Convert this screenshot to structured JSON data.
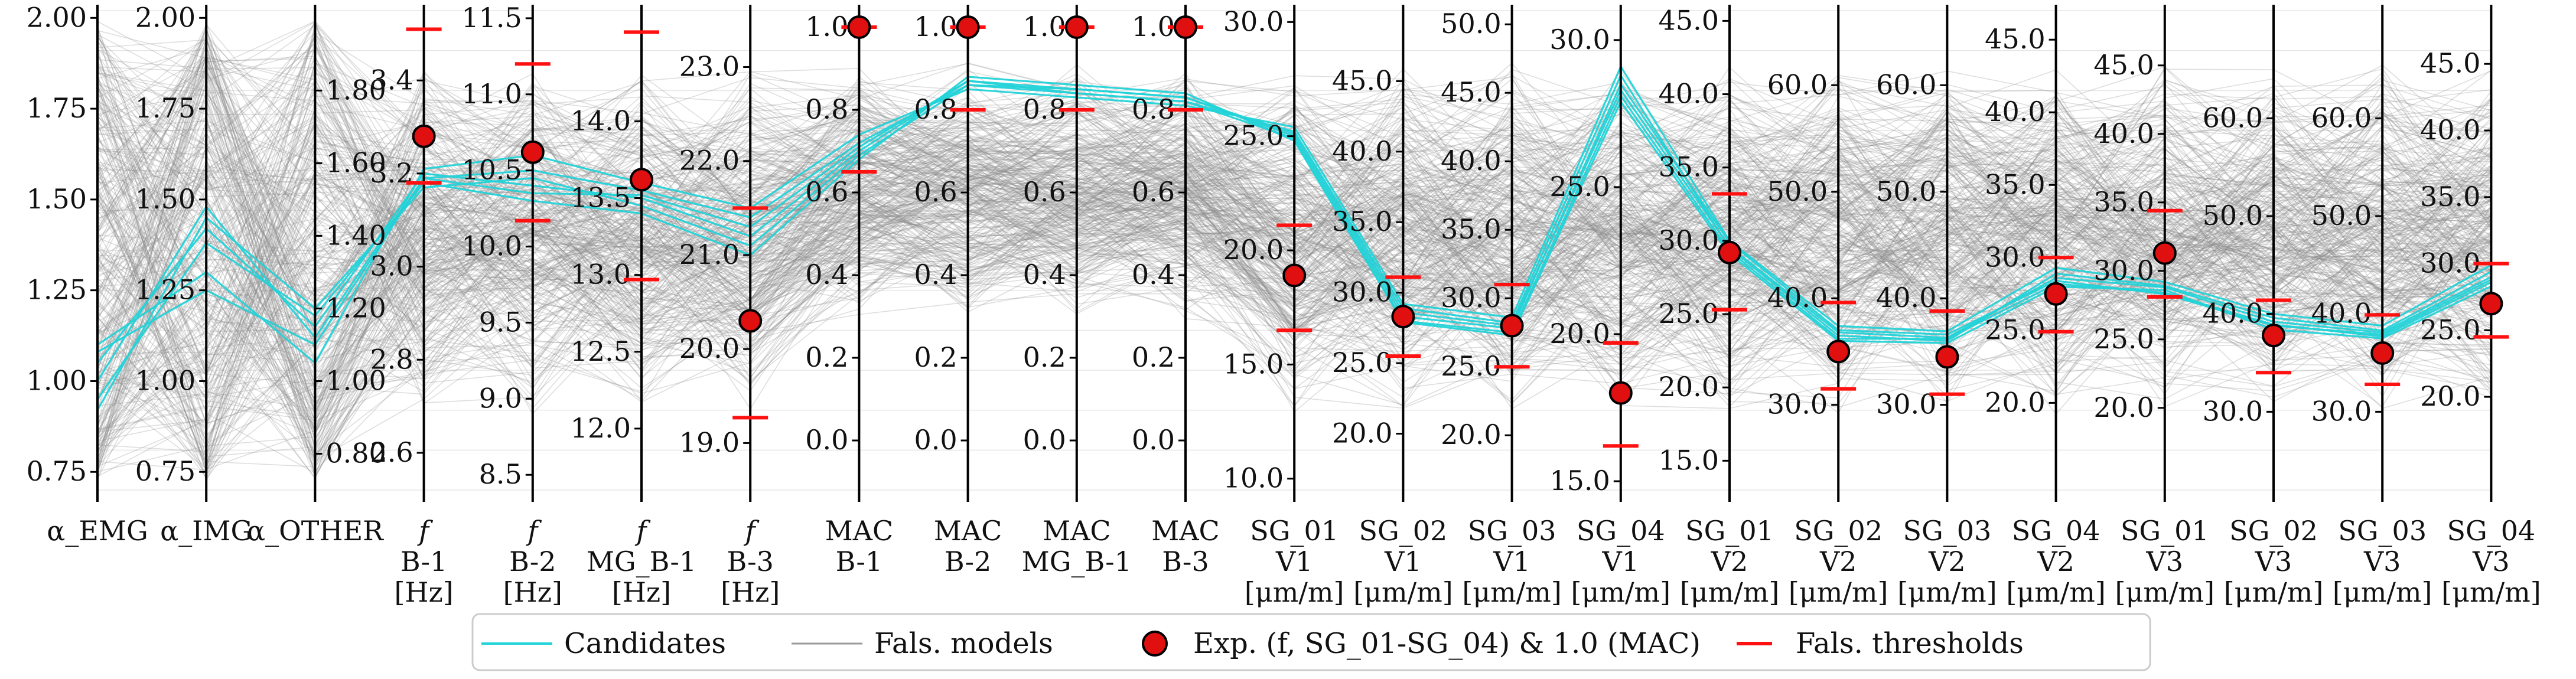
{
  "chart_data": {
    "type": "parallel-coordinates",
    "colors": {
      "candidates": "#22d3d8",
      "fals_models": "#9a9a9a",
      "experiment": "#e01010",
      "thresholds": "#ff1111",
      "axis": "#000000"
    },
    "axes": [
      {
        "id": "a_emg",
        "title": [
          "α_EMG"
        ],
        "range": [
          0.7,
          2.02
        ],
        "ticks": [
          0.75,
          1.0,
          1.25,
          1.5,
          1.75,
          2.0
        ],
        "tick_labels": [
          "0.75",
          "1.00",
          "1.25",
          "1.50",
          "1.75",
          "2.00"
        ],
        "tick_side": "left",
        "exp": null,
        "thresholds": []
      },
      {
        "id": "a_img",
        "title": [
          "α_IMG"
        ],
        "range": [
          0.7,
          2.02
        ],
        "ticks": [
          0.75,
          1.0,
          1.25,
          1.5,
          1.75,
          2.0
        ],
        "tick_labels": [
          "0.75",
          "1.00",
          "1.25",
          "1.50",
          "1.75",
          "2.00"
        ],
        "tick_side": "left",
        "exp": null,
        "thresholds": []
      },
      {
        "id": "a_other",
        "title": [
          "α_OTHER"
        ],
        "range": [
          0.7,
          2.02
        ],
        "ticks": [
          0.8,
          1.0,
          1.2,
          1.4,
          1.6,
          1.8
        ],
        "tick_labels": [
          "0.80",
          "1.00",
          "1.20",
          "1.40",
          "1.60",
          "1.80"
        ],
        "tick_side": "right",
        "exp": null,
        "thresholds": []
      },
      {
        "id": "f_b1",
        "title": [
          "f",
          "B-1",
          "[Hz]"
        ],
        "range": [
          2.52,
          3.55
        ],
        "ticks": [
          2.6,
          2.8,
          3.0,
          3.2,
          3.4
        ],
        "tick_labels": [
          "2.6",
          "2.8",
          "3.0",
          "3.2",
          "3.4"
        ],
        "tick_side": "left",
        "exp": 3.28,
        "thresholds": [
          3.18,
          3.51
        ]
      },
      {
        "id": "f_b2",
        "title": [
          "f",
          "B-2",
          "[Hz]"
        ],
        "range": [
          8.4,
          11.55
        ],
        "ticks": [
          8.5,
          9.0,
          9.5,
          10.0,
          10.5,
          11.0,
          11.5
        ],
        "tick_labels": [
          "8.5",
          "9.0",
          "9.5",
          "10.0",
          "10.5",
          "11.0",
          "11.5"
        ],
        "tick_side": "left",
        "exp": 10.62,
        "thresholds": [
          10.17,
          11.2
        ]
      },
      {
        "id": "f_mgb1",
        "title": [
          "f",
          "MG_B-1",
          "[Hz]"
        ],
        "range": [
          11.6,
          14.72
        ],
        "ticks": [
          12.0,
          12.5,
          13.0,
          13.5,
          14.0
        ],
        "tick_labels": [
          "12.0",
          "12.5",
          "13.0",
          "13.5",
          "14.0"
        ],
        "tick_side": "left",
        "exp": 13.62,
        "thresholds": [
          12.97,
          14.58
        ]
      },
      {
        "id": "f_b3",
        "title": [
          "f",
          "B-3",
          "[Hz]"
        ],
        "range": [
          18.5,
          23.6
        ],
        "ticks": [
          19.0,
          20.0,
          21.0,
          22.0,
          23.0
        ],
        "tick_labels": [
          "19.0",
          "20.0",
          "21.0",
          "22.0",
          "23.0"
        ],
        "tick_side": "left",
        "exp": 20.3,
        "thresholds": [
          19.27,
          21.5
        ]
      },
      {
        "id": "mac_b1",
        "title": [
          "MAC",
          "B-1"
        ],
        "range": [
          -0.12,
          1.04
        ],
        "ticks": [
          0.0,
          0.2,
          0.4,
          0.6,
          0.8,
          1.0
        ],
        "tick_labels": [
          "0.0",
          "0.2",
          "0.4",
          "0.6",
          "0.8",
          "1.0"
        ],
        "tick_side": "left",
        "exp": 1.0,
        "thresholds": [
          0.65,
          1.0
        ]
      },
      {
        "id": "mac_b2",
        "title": [
          "MAC",
          "B-2"
        ],
        "range": [
          -0.12,
          1.04
        ],
        "ticks": [
          0.0,
          0.2,
          0.4,
          0.6,
          0.8,
          1.0
        ],
        "tick_labels": [
          "0.0",
          "0.2",
          "0.4",
          "0.6",
          "0.8",
          "1.0"
        ],
        "tick_side": "left",
        "exp": 1.0,
        "thresholds": [
          0.8,
          1.0
        ]
      },
      {
        "id": "mac_mgb1",
        "title": [
          "MAC",
          "MG_B-1"
        ],
        "range": [
          -0.12,
          1.04
        ],
        "ticks": [
          0.0,
          0.2,
          0.4,
          0.6,
          0.8,
          1.0
        ],
        "tick_labels": [
          "0.0",
          "0.2",
          "0.4",
          "0.6",
          "0.8",
          "1.0"
        ],
        "tick_side": "left",
        "exp": 1.0,
        "thresholds": [
          0.8,
          1.0
        ]
      },
      {
        "id": "mac_b3",
        "title": [
          "MAC",
          "B-3"
        ],
        "range": [
          -0.12,
          1.04
        ],
        "ticks": [
          0.0,
          0.2,
          0.4,
          0.6,
          0.8,
          1.0
        ],
        "tick_labels": [
          "0.0",
          "0.2",
          "0.4",
          "0.6",
          "0.8",
          "1.0"
        ],
        "tick_side": "left",
        "exp": 1.0,
        "thresholds": [
          0.8,
          1.0
        ]
      },
      {
        "id": "sg01_v1",
        "title": [
          "SG_01",
          "V1",
          "[μm/m]"
        ],
        "range": [
          9.5,
          30.5
        ],
        "ticks": [
          10.0,
          15.0,
          20.0,
          25.0,
          30.0
        ],
        "tick_labels": [
          "10.0",
          "15.0",
          "20.0",
          "25.0",
          "30.0"
        ],
        "tick_side": "left",
        "exp": 18.9,
        "thresholds": [
          16.5,
          21.1
        ]
      },
      {
        "id": "sg02_v1",
        "title": [
          "SG_02",
          "V1",
          "[μm/m]"
        ],
        "range": [
          16.0,
          50.0
        ],
        "ticks": [
          20.0,
          25.0,
          30.0,
          35.0,
          40.0,
          45.0
        ],
        "tick_labels": [
          "20.0",
          "25.0",
          "30.0",
          "35.0",
          "40.0",
          "45.0"
        ],
        "tick_side": "left",
        "exp": 28.3,
        "thresholds": [
          25.5,
          31.1
        ]
      },
      {
        "id": "sg03_v1",
        "title": [
          "SG_03",
          "V1",
          "[μm/m]"
        ],
        "range": [
          16.0,
          51.0
        ],
        "ticks": [
          20.0,
          25.0,
          30.0,
          35.0,
          40.0,
          45.0,
          50.0
        ],
        "tick_labels": [
          "20.0",
          "25.0",
          "30.0",
          "35.0",
          "40.0",
          "45.0",
          "50.0"
        ],
        "tick_side": "left",
        "exp": 28.0,
        "thresholds": [
          25.0,
          31.0
        ]
      },
      {
        "id": "sg04_v1",
        "title": [
          "SG_04",
          "V1",
          "[μm/m]"
        ],
        "range": [
          14.7,
          31.0
        ],
        "ticks": [
          15.0,
          20.0,
          25.0,
          30.0
        ],
        "tick_labels": [
          "15.0",
          "20.0",
          "25.0",
          "30.0"
        ],
        "tick_side": "left",
        "exp": 18.0,
        "thresholds": [
          16.2,
          19.7
        ]
      },
      {
        "id": "sg01_v2",
        "title": [
          "SG_01",
          "V2",
          "[μm/m]"
        ],
        "range": [
          13.0,
          45.7
        ],
        "ticks": [
          15.0,
          20.0,
          25.0,
          30.0,
          35.0,
          40.0,
          45.0
        ],
        "tick_labels": [
          "15.0",
          "20.0",
          "25.0",
          "30.0",
          "35.0",
          "40.0",
          "45.0"
        ],
        "tick_side": "left",
        "exp": 29.2,
        "thresholds": [
          25.3,
          33.2
        ]
      },
      {
        "id": "sg02_v2",
        "title": [
          "SG_02",
          "V2",
          "[μm/m]"
        ],
        "range": [
          22.0,
          67.0
        ],
        "ticks": [
          30.0,
          40.0,
          50.0,
          60.0
        ],
        "tick_labels": [
          "30.0",
          "40.0",
          "50.0",
          "60.0"
        ],
        "tick_side": "left",
        "exp": 35.0,
        "thresholds": [
          31.5,
          39.6
        ]
      },
      {
        "id": "sg03_v2",
        "title": [
          "SG_03",
          "V2",
          "[μm/m]"
        ],
        "range": [
          22.0,
          67.0
        ],
        "ticks": [
          30.0,
          40.0,
          50.0,
          60.0
        ],
        "tick_labels": [
          "30.0",
          "40.0",
          "50.0",
          "60.0"
        ],
        "tick_side": "left",
        "exp": 34.5,
        "thresholds": [
          31.0,
          38.8
        ]
      },
      {
        "id": "sg04_v2",
        "title": [
          "SG_04",
          "V2",
          "[μm/m]"
        ],
        "range": [
          14.0,
          47.0
        ],
        "ticks": [
          20.0,
          25.0,
          30.0,
          35.0,
          40.0,
          45.0
        ],
        "tick_labels": [
          "20.0",
          "25.0",
          "30.0",
          "35.0",
          "40.0",
          "45.0"
        ],
        "tick_side": "left",
        "exp": 27.5,
        "thresholds": [
          24.9,
          30.0
        ]
      },
      {
        "id": "sg01_v3",
        "title": [
          "SG_01",
          "V3",
          "[μm/m]"
        ],
        "range": [
          14.0,
          49.0
        ],
        "ticks": [
          20.0,
          25.0,
          30.0,
          35.0,
          40.0,
          45.0
        ],
        "tick_labels": [
          "20.0",
          "25.0",
          "30.0",
          "35.0",
          "40.0",
          "45.0"
        ],
        "tick_side": "left",
        "exp": 31.3,
        "thresholds": [
          28.1,
          34.4
        ]
      },
      {
        "id": "sg02_v3",
        "title": [
          "SG_02",
          "V3",
          "[μm/m]"
        ],
        "range": [
          22.0,
          71.0
        ],
        "ticks": [
          30.0,
          40.0,
          50.0,
          60.0
        ],
        "tick_labels": [
          "30.0",
          "40.0",
          "50.0",
          "60.0"
        ],
        "tick_side": "left",
        "exp": 37.8,
        "thresholds": [
          34.0,
          41.4
        ]
      },
      {
        "id": "sg03_v3",
        "title": [
          "SG_03",
          "V3",
          "[μm/m]"
        ],
        "range": [
          22.0,
          71.0
        ],
        "ticks": [
          30.0,
          40.0,
          50.0,
          60.0
        ],
        "tick_labels": [
          "30.0",
          "40.0",
          "50.0",
          "60.0"
        ],
        "tick_side": "left",
        "exp": 36.0,
        "thresholds": [
          32.8,
          39.9
        ]
      },
      {
        "id": "sg04_v3",
        "title": [
          "SG_04",
          "V3",
          "[μm/m]"
        ],
        "range": [
          13.0,
          49.0
        ],
        "ticks": [
          20.0,
          25.0,
          30.0,
          35.0,
          40.0,
          45.0
        ],
        "tick_labels": [
          "20.0",
          "25.0",
          "30.0",
          "35.0",
          "40.0",
          "45.0"
        ],
        "tick_side": "left",
        "exp": 27.0,
        "thresholds": [
          24.5,
          30.0
        ]
      }
    ],
    "candidates": [
      [
        1.0,
        1.48,
        1.12,
        3.19,
        10.5,
        13.55,
        21.4,
        0.72,
        0.86,
        0.84,
        0.82,
        25.2,
        28.9,
        28.2,
        28.8,
        29.5,
        36.5,
        36.0,
        28.9,
        28.9,
        39.6,
        38.3,
        29.4
      ],
      [
        1.05,
        1.42,
        1.15,
        3.2,
        10.4,
        13.5,
        21.2,
        0.7,
        0.87,
        0.85,
        0.83,
        25.0,
        28.3,
        27.8,
        28.5,
        29.9,
        37.0,
        36.6,
        28.4,
        28.3,
        38.8,
        37.9,
        28.8
      ],
      [
        0.95,
        1.38,
        1.18,
        3.18,
        10.3,
        13.4,
        21.0,
        0.68,
        0.88,
        0.86,
        0.84,
        24.8,
        27.9,
        27.3,
        27.9,
        29.1,
        36.0,
        35.8,
        28.0,
        28.6,
        38.4,
        37.5,
        28.3
      ],
      [
        1.1,
        1.3,
        1.05,
        3.21,
        10.6,
        13.6,
        21.5,
        0.74,
        0.85,
        0.83,
        0.81,
        25.4,
        29.2,
        28.6,
        29.1,
        30.0,
        37.4,
        36.9,
        29.3,
        29.2,
        40.0,
        38.8,
        29.9
      ],
      [
        0.92,
        1.45,
        1.2,
        3.17,
        10.45,
        13.45,
        21.1,
        0.69,
        0.86,
        0.85,
        0.83,
        25.1,
        28.6,
        28.0,
        28.3,
        29.6,
        36.8,
        36.3,
        28.6,
        28.8,
        39.2,
        38.1,
        29.0
      ],
      [
        1.08,
        1.25,
        1.1,
        3.19,
        10.35,
        13.52,
        21.3,
        0.71,
        0.87,
        0.84,
        0.82,
        24.9,
        28.0,
        27.5,
        28.1,
        29.3,
        36.2,
        36.2,
        28.2,
        28.4,
        38.9,
        37.7,
        28.6
      ]
    ],
    "legend": {
      "candidates": "Candidates",
      "fals_models": "Fals. models",
      "experiment": "Exp. (f, SG_01-SG_04) & 1.0 (MAC)",
      "thresholds": "Fals. thresholds"
    }
  }
}
